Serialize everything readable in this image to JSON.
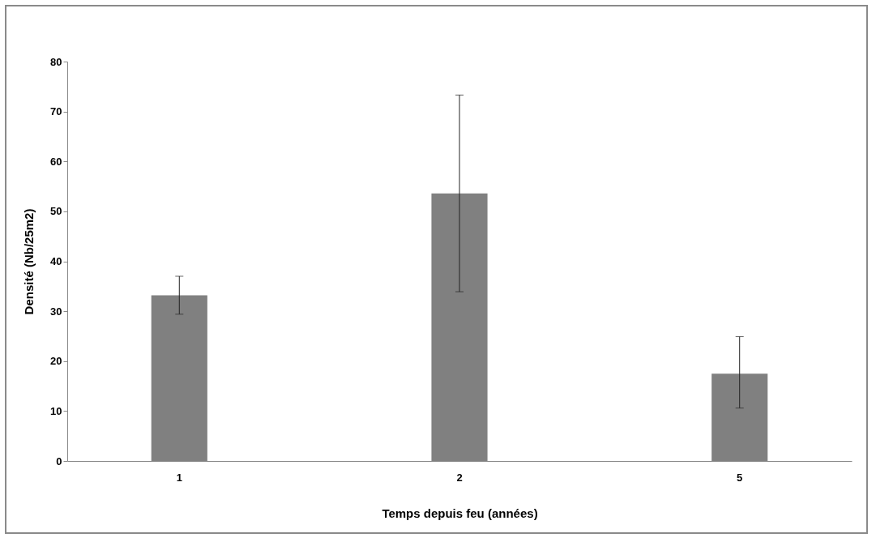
{
  "chart_data": {
    "type": "bar",
    "xlabel": "Temps depuis feu (années)",
    "ylabel": "Densité (Nb/25m2)",
    "categories": [
      "1",
      "2",
      "5"
    ],
    "values": [
      33.2,
      53.6,
      17.5
    ],
    "color": "#808080",
    "errors": [
      [
        29.4,
        37.0
      ],
      [
        33.9,
        73.3
      ],
      [
        10.6,
        24.9
      ]
    ],
    "ylim": [
      0,
      80
    ],
    "yticks": [
      0,
      10,
      20,
      30,
      40,
      50,
      60,
      70,
      80
    ],
    "grid": false
  }
}
